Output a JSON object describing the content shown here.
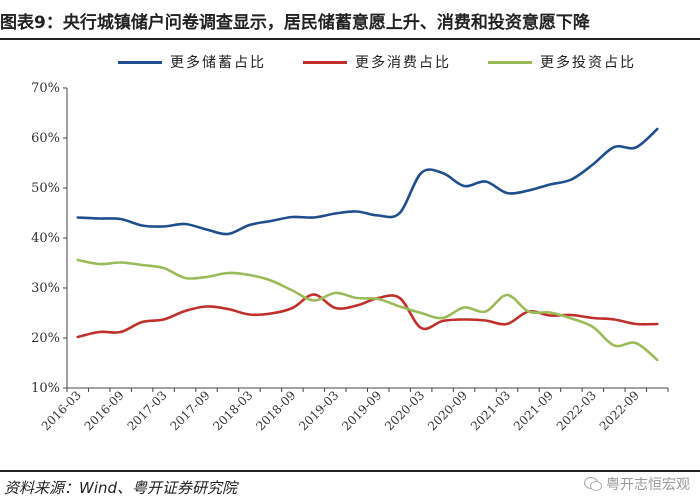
{
  "header": {
    "title": "图表9：央行城镇储户问卷调查显示，居民储蓄意愿上升、消费和投资意愿下降"
  },
  "footer": {
    "source": "资料来源：Wind、粤开证券研究院",
    "watermark": "粤开志恒宏观"
  },
  "colors": {
    "savings": "#1f4e8c",
    "consumption": "#c0302a",
    "investment": "#9bbb59",
    "axis": "#444444"
  },
  "chart_data": {
    "type": "line",
    "title": "",
    "xlabel": "",
    "ylabel": "",
    "ylim": [
      10,
      70
    ],
    "y_ticks": [
      "10%",
      "20%",
      "30%",
      "40%",
      "50%",
      "60%",
      "70%"
    ],
    "grid": false,
    "legend_position": "top",
    "x_tick_labels": [
      "2016-03",
      "2016-09",
      "2017-03",
      "2017-09",
      "2018-03",
      "2018-09",
      "2019-03",
      "2019-09",
      "2020-03",
      "2020-09",
      "2021-03",
      "2021-09",
      "2022-03",
      "2022-09"
    ],
    "x": [
      "2016-03",
      "2016-06",
      "2016-09",
      "2016-12",
      "2017-03",
      "2017-06",
      "2017-09",
      "2017-12",
      "2018-03",
      "2018-06",
      "2018-09",
      "2018-12",
      "2019-03",
      "2019-06",
      "2019-09",
      "2019-12",
      "2020-03",
      "2020-06",
      "2020-09",
      "2020-12",
      "2021-03",
      "2021-06",
      "2021-09",
      "2021-12",
      "2022-03",
      "2022-06",
      "2022-09",
      "2022-12"
    ],
    "series": [
      {
        "name": "更多储蓄占比",
        "values": [
          44.1,
          43.9,
          43.8,
          42.5,
          42.3,
          42.8,
          41.7,
          40.8,
          42.6,
          43.4,
          44.2,
          44.1,
          44.9,
          45.3,
          44.5,
          45.0,
          53.0,
          53.0,
          50.4,
          51.3,
          49.0,
          49.5,
          50.7,
          51.7,
          54.7,
          58.2,
          58.1,
          61.8
        ]
      },
      {
        "name": "更多消费占比",
        "values": [
          20.2,
          21.2,
          21.2,
          23.2,
          23.7,
          25.4,
          26.3,
          25.8,
          24.7,
          24.9,
          26.0,
          28.7,
          26.0,
          26.5,
          28.0,
          28.0,
          22.0,
          23.4,
          23.7,
          23.5,
          22.8,
          25.3,
          24.5,
          24.6,
          24.0,
          23.7,
          22.8,
          22.8
        ]
      },
      {
        "name": "更多投资占比",
        "values": [
          35.6,
          34.8,
          35.1,
          34.6,
          34.0,
          32.0,
          32.2,
          33.0,
          32.6,
          31.5,
          29.5,
          27.5,
          29.0,
          28.0,
          27.8,
          26.3,
          25.0,
          24.0,
          26.1,
          25.3,
          28.6,
          25.3,
          25.1,
          23.9,
          22.2,
          18.5,
          19.0,
          15.6
        ]
      }
    ]
  }
}
